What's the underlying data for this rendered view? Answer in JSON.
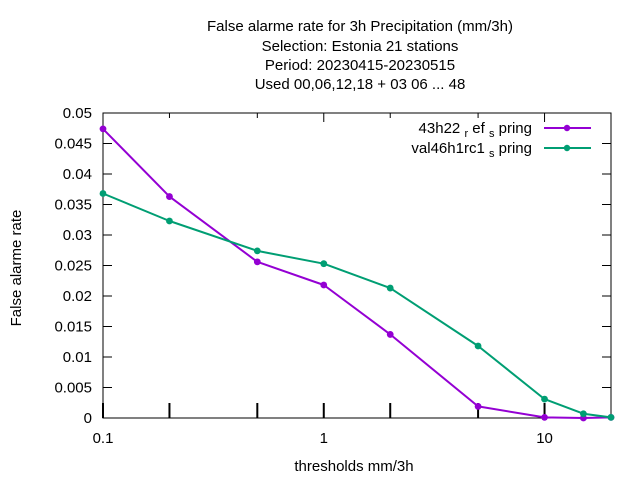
{
  "chart_data": {
    "type": "line",
    "title_lines": [
      "False alarme rate  for 3h Precipitation (mm/3h)",
      "Selection: Estonia      21 stations",
      "Period: 20230415-20230515",
      "Used  00,06,12,18  + 03 06 ... 48"
    ],
    "xlabel": "thresholds mm/3h",
    "ylabel": "False alarme rate",
    "x_scale": "log",
    "xlim": [
      0.1,
      20
    ],
    "ylim": [
      0,
      0.05
    ],
    "x_ticks": [
      0.1,
      1,
      10
    ],
    "x_tick_labels": [
      "0.1",
      "1",
      "10"
    ],
    "x_minor_ticks": [
      0.2,
      0.5,
      2,
      5
    ],
    "y_ticks": [
      0,
      0.005,
      0.01,
      0.015,
      0.02,
      0.025,
      0.03,
      0.035,
      0.04,
      0.045,
      0.05
    ],
    "y_tick_labels": [
      "0",
      "0.005",
      "0.01",
      "0.015",
      "0.02",
      "0.025",
      "0.03",
      "0.035",
      "0.04",
      "0.045",
      "0.05"
    ],
    "grid": false,
    "legend_position": "top-right",
    "series": [
      {
        "name_main": "43h22",
        "name_sub1": "r",
        "name_mid": "ef",
        "name_sub2": "s",
        "name_end": "pring",
        "color": "#9400d3",
        "x": [
          0.1,
          0.2,
          0.5,
          1,
          2,
          5,
          10,
          15,
          20
        ],
        "y": [
          0.0474,
          0.0363,
          0.0256,
          0.0218,
          0.0137,
          0.0019,
          0.0001,
          0.0,
          0.0001
        ]
      },
      {
        "name_main": "val46h1rc1",
        "name_sub1": "s",
        "name_end": "pring",
        "color": "#009e73",
        "x": [
          0.1,
          0.2,
          0.5,
          1,
          2,
          5,
          10,
          15,
          20
        ],
        "y": [
          0.0368,
          0.0323,
          0.0274,
          0.0253,
          0.0213,
          0.0118,
          0.0031,
          0.0007,
          0.0001
        ]
      }
    ]
  }
}
